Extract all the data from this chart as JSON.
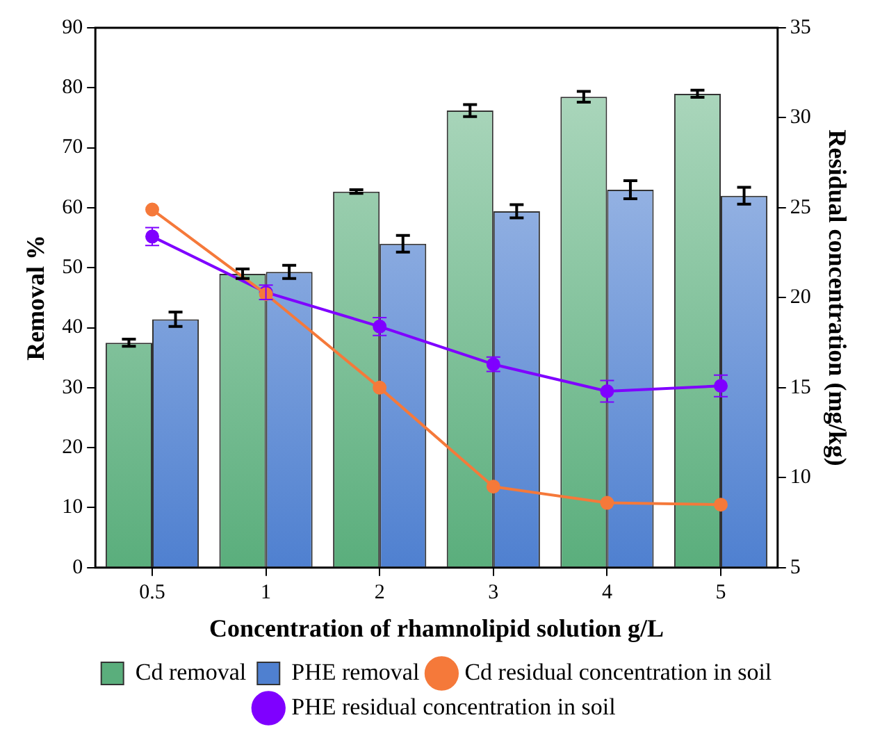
{
  "chart_data": {
    "type": "bar",
    "xlabel": "Concentration of rhamnolipid solution g/L",
    "ylabel": "Removal %",
    "y2label": "Residual concentration (mg/kg)",
    "categories": [
      "0.5",
      "1",
      "2",
      "3",
      "4",
      "5"
    ],
    "series": [
      {
        "name": "Cd removal",
        "color": "#5aae7c",
        "values": [
          37.5,
          49,
          62.7,
          76.2,
          78.5,
          79
        ],
        "errors": [
          0.6,
          0.8,
          0.3,
          1,
          0.9,
          0.6
        ]
      },
      {
        "name": "PHE removal",
        "color": "#4f80d0",
        "values": [
          41.4,
          49.3,
          54,
          59.4,
          63,
          62
        ],
        "errors": [
          1.2,
          1.1,
          1.4,
          1.1,
          1.5,
          1.4
        ]
      },
      {
        "name": "Cd residual concentration in soil",
        "type": "line",
        "axis": "y2",
        "color": "#f5793a",
        "values": [
          24.9,
          20.2,
          15,
          9.5,
          8.6,
          8.5
        ]
      },
      {
        "name": "PHE residual concentration in soil",
        "type": "line",
        "axis": "y2",
        "color": "#7f00ff",
        "values": [
          23.4,
          20.3,
          18.4,
          16.3,
          14.8,
          15.1
        ],
        "errors": [
          0.5,
          0.4,
          0.5,
          0.4,
          0.6,
          0.6
        ]
      }
    ],
    "ylim": [
      0,
      90
    ],
    "yticks": [
      0,
      10,
      20,
      30,
      40,
      50,
      60,
      70,
      80,
      90
    ],
    "y2lim": [
      5,
      35
    ],
    "y2ticks": [
      5,
      10,
      15,
      20,
      25,
      30,
      35
    ],
    "grid": false,
    "legend": "bottom",
    "marker": "circle",
    "line_style": "solid"
  }
}
